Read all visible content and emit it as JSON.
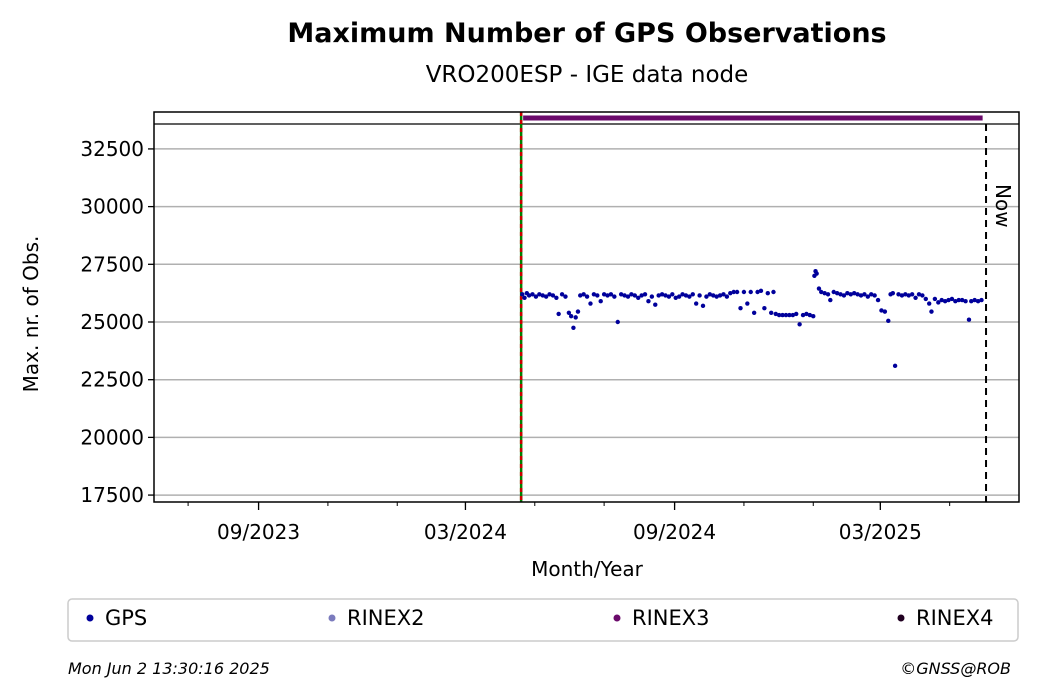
{
  "chart_data": {
    "type": "scatter",
    "title": "Maximum Number of GPS Observations",
    "subtitle": "VRO200ESP - IGE data node",
    "xlabel": "Month/Year",
    "ylabel": "Max. nr. of Obs.",
    "ylim": [
      17200,
      34100
    ],
    "yticks": [
      17500,
      20000,
      22500,
      25000,
      27500,
      30000,
      32500
    ],
    "ytick_labels": [
      "17500",
      "20000",
      "22500",
      "25000",
      "27500",
      "30000",
      "32500"
    ],
    "xlim": [
      "2023-06-01",
      "2025-07-01"
    ],
    "xticks": [
      "2023-09-01",
      "2024-03-01",
      "2024-09-01",
      "2025-03-01"
    ],
    "xtick_labels": [
      "09/2023",
      "03/2024",
      "09/2024",
      "03/2025"
    ],
    "grid": "horizontal",
    "now_label": "Now",
    "now_date": "2025-06-02",
    "start_marker_date": "2024-04-19",
    "rinex3_band_value": 33750,
    "series": [
      {
        "name": "GPS",
        "color": "#00009b",
        "points": [
          [
            "2024-04-20",
            26200
          ],
          [
            "2024-04-22",
            26050
          ],
          [
            "2024-04-24",
            26250
          ],
          [
            "2024-04-26",
            26150
          ],
          [
            "2024-04-29",
            26200
          ],
          [
            "2024-05-02",
            26100
          ],
          [
            "2024-05-05",
            26200
          ],
          [
            "2024-05-08",
            26150
          ],
          [
            "2024-05-11",
            26100
          ],
          [
            "2024-05-14",
            26200
          ],
          [
            "2024-05-17",
            26150
          ],
          [
            "2024-05-20",
            26050
          ],
          [
            "2024-05-22",
            25350
          ],
          [
            "2024-05-25",
            26200
          ],
          [
            "2024-05-28",
            26100
          ],
          [
            "2024-05-31",
            25400
          ],
          [
            "2024-06-02",
            25250
          ],
          [
            "2024-06-04",
            24750
          ],
          [
            "2024-06-06",
            25200
          ],
          [
            "2024-06-08",
            25450
          ],
          [
            "2024-06-10",
            26150
          ],
          [
            "2024-06-13",
            26200
          ],
          [
            "2024-06-16",
            26100
          ],
          [
            "2024-06-19",
            25800
          ],
          [
            "2024-06-22",
            26200
          ],
          [
            "2024-06-25",
            26150
          ],
          [
            "2024-06-28",
            25900
          ],
          [
            "2024-07-01",
            26200
          ],
          [
            "2024-07-04",
            26150
          ],
          [
            "2024-07-07",
            26200
          ],
          [
            "2024-07-10",
            26100
          ],
          [
            "2024-07-13",
            25000
          ],
          [
            "2024-07-16",
            26200
          ],
          [
            "2024-07-19",
            26150
          ],
          [
            "2024-07-22",
            26100
          ],
          [
            "2024-07-25",
            26200
          ],
          [
            "2024-07-28",
            26150
          ],
          [
            "2024-07-31",
            26050
          ],
          [
            "2024-08-03",
            26150
          ],
          [
            "2024-08-06",
            26200
          ],
          [
            "2024-08-09",
            25900
          ],
          [
            "2024-08-12",
            26100
          ],
          [
            "2024-08-15",
            25750
          ],
          [
            "2024-08-18",
            26150
          ],
          [
            "2024-08-21",
            26200
          ],
          [
            "2024-08-24",
            26150
          ],
          [
            "2024-08-27",
            26100
          ],
          [
            "2024-08-30",
            26200
          ],
          [
            "2024-09-02",
            26050
          ],
          [
            "2024-09-05",
            26100
          ],
          [
            "2024-09-08",
            26200
          ],
          [
            "2024-09-11",
            26150
          ],
          [
            "2024-09-14",
            26100
          ],
          [
            "2024-09-17",
            26200
          ],
          [
            "2024-09-20",
            25800
          ],
          [
            "2024-09-23",
            26150
          ],
          [
            "2024-09-26",
            25700
          ],
          [
            "2024-09-29",
            26100
          ],
          [
            "2024-10-02",
            26200
          ],
          [
            "2024-10-05",
            26150
          ],
          [
            "2024-10-08",
            26100
          ],
          [
            "2024-10-11",
            26150
          ],
          [
            "2024-10-14",
            26200
          ],
          [
            "2024-10-17",
            26100
          ],
          [
            "2024-10-20",
            26250
          ],
          [
            "2024-10-23",
            26300
          ],
          [
            "2024-10-26",
            26300
          ],
          [
            "2024-10-29",
            25600
          ],
          [
            "2024-11-01",
            26300
          ],
          [
            "2024-11-04",
            25800
          ],
          [
            "2024-11-07",
            26300
          ],
          [
            "2024-11-10",
            25400
          ],
          [
            "2024-11-13",
            26300
          ],
          [
            "2024-11-16",
            26350
          ],
          [
            "2024-11-19",
            25600
          ],
          [
            "2024-11-22",
            26250
          ],
          [
            "2024-11-25",
            25400
          ],
          [
            "2024-11-27",
            26300
          ],
          [
            "2024-11-29",
            25350
          ],
          [
            "2024-12-02",
            25300
          ],
          [
            "2024-12-05",
            25300
          ],
          [
            "2024-12-08",
            25300
          ],
          [
            "2024-12-11",
            25300
          ],
          [
            "2024-12-14",
            25300
          ],
          [
            "2024-12-17",
            25350
          ],
          [
            "2024-12-20",
            24900
          ],
          [
            "2024-12-23",
            25300
          ],
          [
            "2024-12-26",
            25350
          ],
          [
            "2024-12-29",
            25300
          ],
          [
            "2025-01-01",
            25250
          ],
          [
            "2025-01-02",
            27000
          ],
          [
            "2025-01-03",
            27200
          ],
          [
            "2025-01-04",
            27100
          ],
          [
            "2025-01-06",
            26450
          ],
          [
            "2025-01-08",
            26300
          ],
          [
            "2025-01-11",
            26250
          ],
          [
            "2025-01-14",
            26200
          ],
          [
            "2025-01-16",
            25950
          ],
          [
            "2025-01-19",
            26300
          ],
          [
            "2025-01-22",
            26250
          ],
          [
            "2025-01-25",
            26200
          ],
          [
            "2025-01-28",
            26150
          ],
          [
            "2025-01-31",
            26250
          ],
          [
            "2025-02-03",
            26200
          ],
          [
            "2025-02-06",
            26250
          ],
          [
            "2025-02-09",
            26200
          ],
          [
            "2025-02-12",
            26150
          ],
          [
            "2025-02-15",
            26200
          ],
          [
            "2025-02-18",
            26100
          ],
          [
            "2025-02-21",
            26200
          ],
          [
            "2025-02-24",
            26150
          ],
          [
            "2025-02-27",
            25950
          ],
          [
            "2025-03-02",
            25500
          ],
          [
            "2025-03-05",
            25450
          ],
          [
            "2025-03-08",
            25050
          ],
          [
            "2025-03-10",
            26200
          ],
          [
            "2025-03-12",
            26250
          ],
          [
            "2025-03-14",
            23100
          ],
          [
            "2025-03-17",
            26200
          ],
          [
            "2025-03-20",
            26150
          ],
          [
            "2025-03-23",
            26200
          ],
          [
            "2025-03-26",
            26150
          ],
          [
            "2025-03-29",
            26200
          ],
          [
            "2025-04-01",
            26050
          ],
          [
            "2025-04-04",
            26200
          ],
          [
            "2025-04-07",
            26150
          ],
          [
            "2025-04-10",
            26000
          ],
          [
            "2025-04-13",
            25800
          ],
          [
            "2025-04-15",
            25450
          ],
          [
            "2025-04-18",
            26000
          ],
          [
            "2025-04-21",
            25850
          ],
          [
            "2025-04-24",
            25950
          ],
          [
            "2025-04-27",
            25900
          ],
          [
            "2025-04-30",
            25950
          ],
          [
            "2025-05-03",
            26000
          ],
          [
            "2025-05-06",
            25900
          ],
          [
            "2025-05-09",
            25950
          ],
          [
            "2025-05-12",
            25950
          ],
          [
            "2025-05-15",
            25900
          ],
          [
            "2025-05-18",
            25100
          ],
          [
            "2025-05-20",
            25900
          ],
          [
            "2025-05-23",
            25950
          ],
          [
            "2025-05-26",
            25900
          ],
          [
            "2025-05-29",
            25950
          ]
        ]
      },
      {
        "name": "RINEX2",
        "color": "#7b7bbd",
        "points": []
      },
      {
        "name": "RINEX3",
        "color": "#6b0a6b",
        "points": []
      },
      {
        "name": "RINEX4",
        "color": "#200020",
        "points": []
      }
    ],
    "legend": [
      "GPS",
      "RINEX2",
      "RINEX3",
      "RINEX4"
    ],
    "legend_position": "bottom"
  },
  "footer": {
    "timestamp": "Mon Jun  2 13:30:16 2025",
    "copyright": "©GNSS@ROB"
  },
  "colors": {
    "start_marker_primary": "#cc0000",
    "start_marker_secondary": "#008000",
    "grid": "#b0b0b0"
  }
}
